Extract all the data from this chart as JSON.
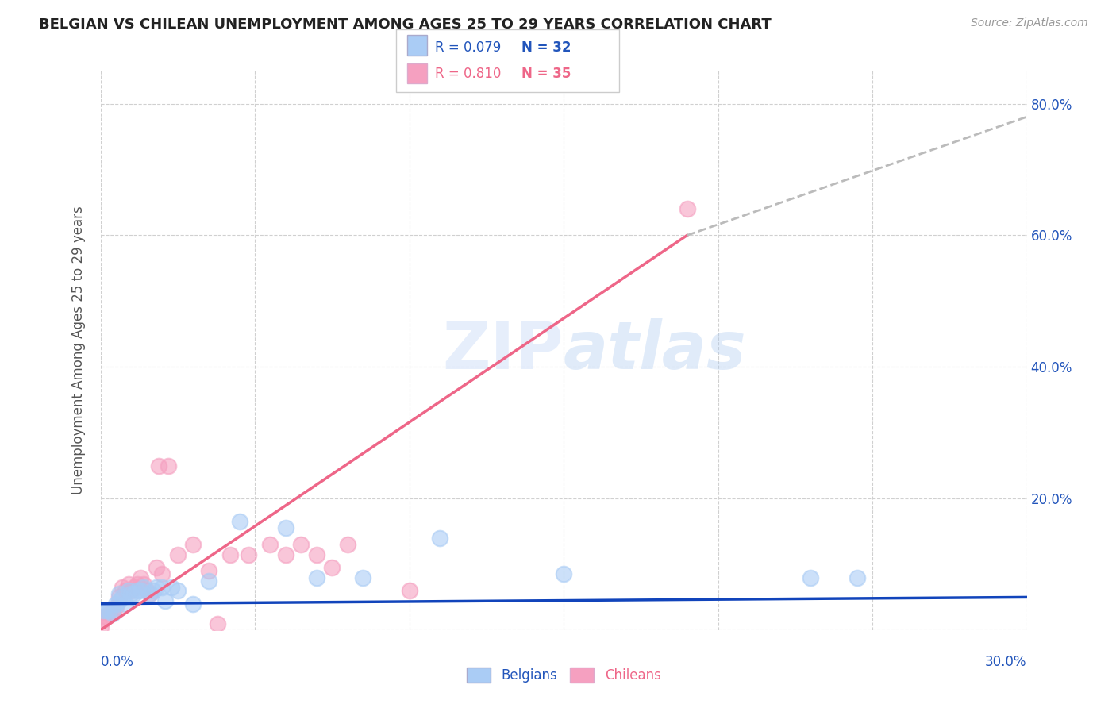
{
  "title": "BELGIAN VS CHILEAN UNEMPLOYMENT AMONG AGES 25 TO 29 YEARS CORRELATION CHART",
  "source": "Source: ZipAtlas.com",
  "ylabel": "Unemployment Among Ages 25 to 29 years",
  "xlim": [
    0.0,
    0.3
  ],
  "ylim": [
    0.0,
    0.85
  ],
  "yticks": [
    0.0,
    0.2,
    0.4,
    0.6,
    0.8
  ],
  "ytick_labels": [
    "",
    "20.0%",
    "40.0%",
    "60.0%",
    "80.0%"
  ],
  "background_color": "#ffffff",
  "grid_color": "#d0d0d0",
  "watermark": "ZIPatlas",
  "legend_r_belgian": "R = 0.079",
  "legend_n_belgian": "N = 32",
  "legend_r_chilean": "R = 0.810",
  "legend_n_chilean": "N = 35",
  "belgian_color": "#aaccf5",
  "chilean_color": "#f5a0c0",
  "belgian_line_color": "#1144bb",
  "chilean_line_color": "#ee6688",
  "trendline_extend_color": "#bbbbbb",
  "belgians_x": [
    0.001,
    0.002,
    0.003,
    0.004,
    0.005,
    0.006,
    0.006,
    0.007,
    0.008,
    0.009,
    0.01,
    0.011,
    0.012,
    0.013,
    0.014,
    0.016,
    0.017,
    0.018,
    0.02,
    0.021,
    0.023,
    0.025,
    0.03,
    0.035,
    0.045,
    0.06,
    0.07,
    0.085,
    0.11,
    0.15,
    0.23,
    0.245
  ],
  "belgians_y": [
    0.03,
    0.03,
    0.03,
    0.025,
    0.04,
    0.055,
    0.045,
    0.05,
    0.04,
    0.06,
    0.055,
    0.055,
    0.06,
    0.06,
    0.065,
    0.055,
    0.06,
    0.065,
    0.065,
    0.045,
    0.065,
    0.06,
    0.04,
    0.075,
    0.165,
    0.155,
    0.08,
    0.08,
    0.14,
    0.085,
    0.08,
    0.08
  ],
  "chileans_x": [
    0.0,
    0.001,
    0.002,
    0.003,
    0.004,
    0.005,
    0.006,
    0.007,
    0.008,
    0.009,
    0.01,
    0.011,
    0.012,
    0.013,
    0.014,
    0.015,
    0.016,
    0.018,
    0.019,
    0.02,
    0.022,
    0.025,
    0.03,
    0.035,
    0.038,
    0.042,
    0.048,
    0.055,
    0.06,
    0.065,
    0.07,
    0.075,
    0.08,
    0.1,
    0.19
  ],
  "chileans_y": [
    0.005,
    0.015,
    0.02,
    0.025,
    0.03,
    0.035,
    0.05,
    0.065,
    0.06,
    0.07,
    0.06,
    0.065,
    0.07,
    0.08,
    0.07,
    0.06,
    0.055,
    0.095,
    0.25,
    0.085,
    0.25,
    0.115,
    0.13,
    0.09,
    0.01,
    0.115,
    0.115,
    0.13,
    0.115,
    0.13,
    0.115,
    0.095,
    0.13,
    0.06,
    0.64
  ],
  "belgian_trendline": [
    0.0,
    0.3,
    0.04,
    0.05
  ],
  "chilean_trendline_solid": [
    0.0,
    0.19,
    0.0,
    0.6
  ],
  "chilean_trendline_dash": [
    0.19,
    0.3,
    0.6,
    0.78
  ]
}
